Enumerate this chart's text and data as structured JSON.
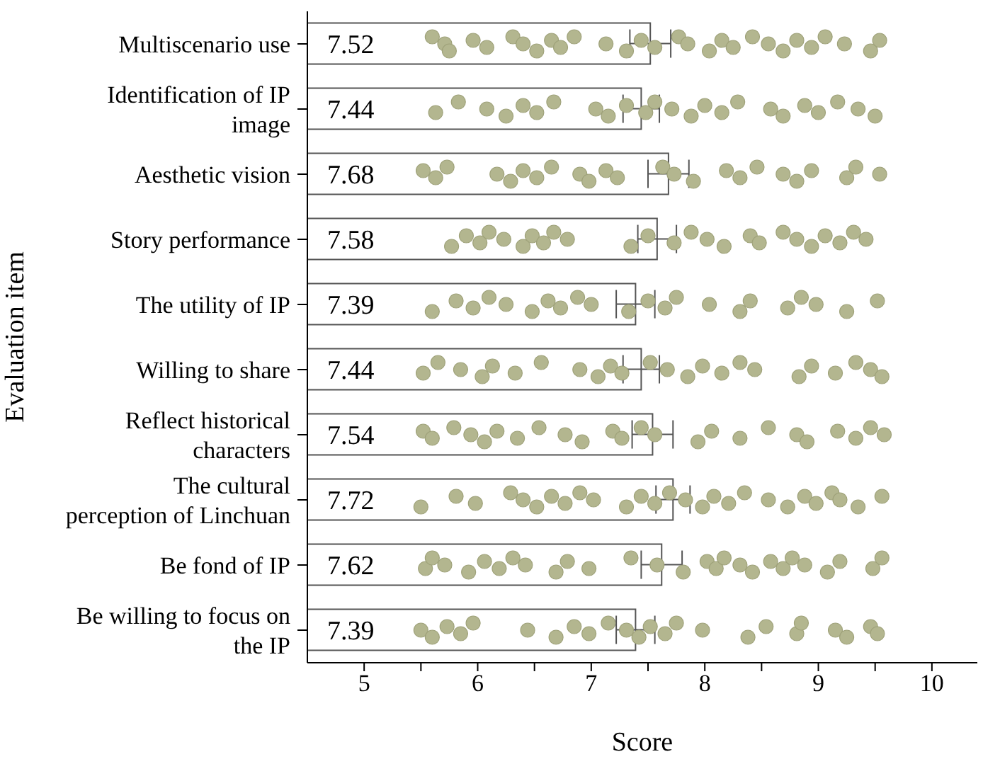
{
  "chart_data": {
    "type": "bar",
    "orientation": "horizontal",
    "xlabel": "Score",
    "ylabel": "Evaluation item",
    "categories": [
      "Multiscenario use",
      "Identification of IP image",
      "Aesthetic vision",
      "Story performance",
      "The utility of IP",
      "Willing to share",
      "Reflect historical characters",
      "The cultural perception of Linchuan",
      "Be fond of IP",
      "Be willing to focus on the IP"
    ],
    "values": [
      7.52,
      7.44,
      7.68,
      7.58,
      7.39,
      7.44,
      7.54,
      7.72,
      7.62,
      7.39
    ],
    "errors": [
      0.18,
      0.16,
      0.18,
      0.17,
      0.17,
      0.16,
      0.18,
      0.15,
      0.18,
      0.17
    ],
    "color": "#ffffff",
    "value_labels": [
      "7.52",
      "7.44",
      "7.68",
      "7.58",
      "7.39",
      "7.44",
      "7.54",
      "7.72",
      "7.62",
      "7.39"
    ],
    "xlim": [
      4.5,
      10.4
    ],
    "xticks": [
      5,
      {
        "value": 5.5,
        "label": null
      },
      6,
      {
        "value": 6.5,
        "label": null
      },
      7,
      {
        "value": 7.5,
        "label": null
      },
      8,
      {
        "value": 8.5,
        "label": null
      },
      9,
      {
        "value": 9.5,
        "label": null
      },
      10
    ],
    "grid": false,
    "legend": false,
    "series": [
      {
        "type": "scatter",
        "color": "#b3b68f",
        "marker": "circle",
        "x": [
          "Multiscenario use",
          "Multiscenario use",
          "Multiscenario use",
          "Multiscenario use",
          "Multiscenario use",
          "Multiscenario use",
          "Multiscenario use",
          "Multiscenario use",
          "Multiscenario use",
          "Multiscenario use",
          "Multiscenario use",
          "Multiscenario use",
          "Multiscenario use",
          "Multiscenario use",
          "Multiscenario use",
          "Multiscenario use",
          "Multiscenario use",
          "Multiscenario use",
          "Multiscenario use",
          "Multiscenario use",
          "Multiscenario use",
          "Multiscenario use",
          "Multiscenario use",
          "Multiscenario use",
          "Multiscenario use",
          "Multiscenario use",
          "Multiscenario use",
          "Multiscenario use",
          "Multiscenario use",
          "Identification of IP image",
          "Identification of IP image",
          "Identification of IP image",
          "Identification of IP image",
          "Identification of IP image",
          "Identification of IP image",
          "Identification of IP image",
          "Identification of IP image",
          "Identification of IP image",
          "Identification of IP image",
          "Identification of IP image",
          "Identification of IP image",
          "Identification of IP image",
          "Identification of IP image",
          "Identification of IP image",
          "Identification of IP image",
          "Identification of IP image",
          "Identification of IP image",
          "Identification of IP image",
          "Identification of IP image",
          "Identification of IP image",
          "Identification of IP image",
          "Identification of IP image",
          "Identification of IP image",
          "Aesthetic vision",
          "Aesthetic vision",
          "Aesthetic vision",
          "Aesthetic vision",
          "Aesthetic vision",
          "Aesthetic vision",
          "Aesthetic vision",
          "Aesthetic vision",
          "Aesthetic vision",
          "Aesthetic vision",
          "Aesthetic vision",
          "Aesthetic vision",
          "Aesthetic vision",
          "Aesthetic vision",
          "Aesthetic vision",
          "Aesthetic vision",
          "Aesthetic vision",
          "Aesthetic vision",
          "Aesthetic vision",
          "Aesthetic vision",
          "Aesthetic vision",
          "Aesthetic vision",
          "Aesthetic vision",
          "Aesthetic vision",
          "Story performance",
          "Story performance",
          "Story performance",
          "Story performance",
          "Story performance",
          "Story performance",
          "Story performance",
          "Story performance",
          "Story performance",
          "Story performance",
          "Story performance",
          "Story performance",
          "Story performance",
          "Story performance",
          "Story performance",
          "Story performance",
          "Story performance",
          "Story performance",
          "Story performance",
          "Story performance",
          "Story performance",
          "Story performance",
          "Story performance",
          "Story performance",
          "Story performance",
          "The utility of IP",
          "The utility of IP",
          "The utility of IP",
          "The utility of IP",
          "The utility of IP",
          "The utility of IP",
          "The utility of IP",
          "The utility of IP",
          "The utility of IP",
          "The utility of IP",
          "The utility of IP",
          "The utility of IP",
          "The utility of IP",
          "The utility of IP",
          "The utility of IP",
          "The utility of IP",
          "The utility of IP",
          "The utility of IP",
          "The utility of IP",
          "The utility of IP",
          "The utility of IP",
          "The utility of IP",
          "Willing to share",
          "Willing to share",
          "Willing to share",
          "Willing to share",
          "Willing to share",
          "Willing to share",
          "Willing to share",
          "Willing to share",
          "Willing to share",
          "Willing to share",
          "Willing to share",
          "Willing to share",
          "Willing to share",
          "Willing to share",
          "Willing to share",
          "Willing to share",
          "Willing to share",
          "Willing to share",
          "Willing to share",
          "Willing to share",
          "Willing to share",
          "Willing to share",
          "Willing to share",
          "Willing to share",
          "Reflect historical characters",
          "Reflect historical characters",
          "Reflect historical characters",
          "Reflect historical characters",
          "Reflect historical characters",
          "Reflect historical characters",
          "Reflect historical characters",
          "Reflect historical characters",
          "Reflect historical characters",
          "Reflect historical characters",
          "Reflect historical characters",
          "Reflect historical characters",
          "Reflect historical characters",
          "Reflect historical characters",
          "Reflect historical characters",
          "Reflect historical characters",
          "Reflect historical characters",
          "Reflect historical characters",
          "Reflect historical characters",
          "Reflect historical characters",
          "Reflect historical characters",
          "Reflect historical characters",
          "Reflect historical characters",
          "Reflect historical characters",
          "The cultural perception of Linchuan",
          "The cultural perception of Linchuan",
          "The cultural perception of Linchuan",
          "The cultural perception of Linchuan",
          "The cultural perception of Linchuan",
          "The cultural perception of Linchuan",
          "The cultural perception of Linchuan",
          "The cultural perception of Linchuan",
          "The cultural perception of Linchuan",
          "The cultural perception of Linchuan",
          "The cultural perception of Linchuan",
          "The cultural perception of Linchuan",
          "The cultural perception of Linchuan",
          "The cultural perception of Linchuan",
          "The cultural perception of Linchuan",
          "The cultural perception of Linchuan",
          "The cultural perception of Linchuan",
          "The cultural perception of Linchuan",
          "The cultural perception of Linchuan",
          "The cultural perception of Linchuan",
          "The cultural perception of Linchuan",
          "The cultural perception of Linchuan",
          "The cultural perception of Linchuan",
          "The cultural perception of Linchuan",
          "The cultural perception of Linchuan",
          "The cultural perception of Linchuan",
          "The cultural perception of Linchuan",
          "Be fond of IP",
          "Be fond of IP",
          "Be fond of IP",
          "Be fond of IP",
          "Be fond of IP",
          "Be fond of IP",
          "Be fond of IP",
          "Be fond of IP",
          "Be fond of IP",
          "Be fond of IP",
          "Be fond of IP",
          "Be fond of IP",
          "Be fond of IP",
          "Be fond of IP",
          "Be fond of IP",
          "Be fond of IP",
          "Be fond of IP",
          "Be fond of IP",
          "Be fond of IP",
          "Be fond of IP",
          "Be fond of IP",
          "Be fond of IP",
          "Be fond of IP",
          "Be fond of IP",
          "Be fond of IP",
          "Be fond of IP",
          "Be fond of IP",
          "Be willing to focus on the IP",
          "Be willing to focus on the IP",
          "Be willing to focus on the IP",
          "Be willing to focus on the IP",
          "Be willing to focus on the IP",
          "Be willing to focus on the IP",
          "Be willing to focus on the IP",
          "Be willing to focus on the IP",
          "Be willing to focus on the IP",
          "Be willing to focus on the IP",
          "Be willing to focus on the IP",
          "Be willing to focus on the IP",
          "Be willing to focus on the IP",
          "Be willing to focus on the IP",
          "Be willing to focus on the IP",
          "Be willing to focus on the IP",
          "Be willing to focus on the IP",
          "Be willing to focus on the IP",
          "Be willing to focus on the IP",
          "Be willing to focus on the IP",
          "Be willing to focus on the IP",
          "Be willing to focus on the IP",
          "Be willing to focus on the IP",
          "Be willing to focus on the IP"
        ],
        "values": [
          5.6,
          5.71,
          5.75,
          5.96,
          6.08,
          6.31,
          6.4,
          6.52,
          6.65,
          6.73,
          6.85,
          7.13,
          7.31,
          7.44,
          7.56,
          7.77,
          7.85,
          8.04,
          8.15,
          8.25,
          8.42,
          8.56,
          8.69,
          8.81,
          8.94,
          9.06,
          9.23,
          9.46,
          9.54,
          5.63,
          5.83,
          6.08,
          6.25,
          6.4,
          6.52,
          6.67,
          7.04,
          7.15,
          7.31,
          7.48,
          7.56,
          7.71,
          7.88,
          8.0,
          8.15,
          8.29,
          8.58,
          8.69,
          8.88,
          9.0,
          9.17,
          9.35,
          9.5,
          5.52,
          5.63,
          5.73,
          6.17,
          6.29,
          6.4,
          6.52,
          6.65,
          6.9,
          6.98,
          7.13,
          7.23,
          7.63,
          7.73,
          7.9,
          8.19,
          8.31,
          8.46,
          8.69,
          8.81,
          8.94,
          9.25,
          9.33,
          9.54,
          5.77,
          5.9,
          6.02,
          6.1,
          6.23,
          6.4,
          6.48,
          6.58,
          6.67,
          6.79,
          7.35,
          7.5,
          7.73,
          7.88,
          8.02,
          8.17,
          8.4,
          8.48,
          8.69,
          8.81,
          8.94,
          9.06,
          9.19,
          9.31,
          9.42,
          5.6,
          5.81,
          5.96,
          6.1,
          6.25,
          6.48,
          6.62,
          6.73,
          6.88,
          7.0,
          7.33,
          7.5,
          7.65,
          7.75,
          8.04,
          8.31,
          8.4,
          8.73,
          8.85,
          8.98,
          9.25,
          9.52,
          5.52,
          5.65,
          5.85,
          6.04,
          6.13,
          6.33,
          6.56,
          6.9,
          7.06,
          7.17,
          7.27,
          7.52,
          7.67,
          7.85,
          7.98,
          8.15,
          8.31,
          8.44,
          8.83,
          8.94,
          9.15,
          9.33,
          9.46,
          9.56,
          5.52,
          5.6,
          5.79,
          5.94,
          6.06,
          6.17,
          6.35,
          6.54,
          6.77,
          6.92,
          7.19,
          7.27,
          7.44,
          7.56,
          7.94,
          8.06,
          8.31,
          8.56,
          8.81,
          8.9,
          9.17,
          9.33,
          9.46,
          9.58,
          5.5,
          5.81,
          5.98,
          6.29,
          6.4,
          6.52,
          6.65,
          6.77,
          6.9,
          7.02,
          7.31,
          7.44,
          7.56,
          7.69,
          7.83,
          7.98,
          8.08,
          8.21,
          8.35,
          8.56,
          8.73,
          8.88,
          8.98,
          9.12,
          9.19,
          9.35,
          9.56,
          5.54,
          5.6,
          5.71,
          5.92,
          6.06,
          6.19,
          6.31,
          6.42,
          6.69,
          6.79,
          6.98,
          7.35,
          7.58,
          7.81,
          8.02,
          8.1,
          8.17,
          8.31,
          8.42,
          8.58,
          8.69,
          8.77,
          8.88,
          9.08,
          9.19,
          9.48,
          9.56,
          5.5,
          5.6,
          5.73,
          5.85,
          5.96,
          6.44,
          6.69,
          6.85,
          6.98,
          7.15,
          7.31,
          7.42,
          7.52,
          7.65,
          7.75,
          7.98,
          8.38,
          8.54,
          8.81,
          8.85,
          9.15,
          9.25,
          9.46,
          9.52
        ]
      }
    ]
  }
}
